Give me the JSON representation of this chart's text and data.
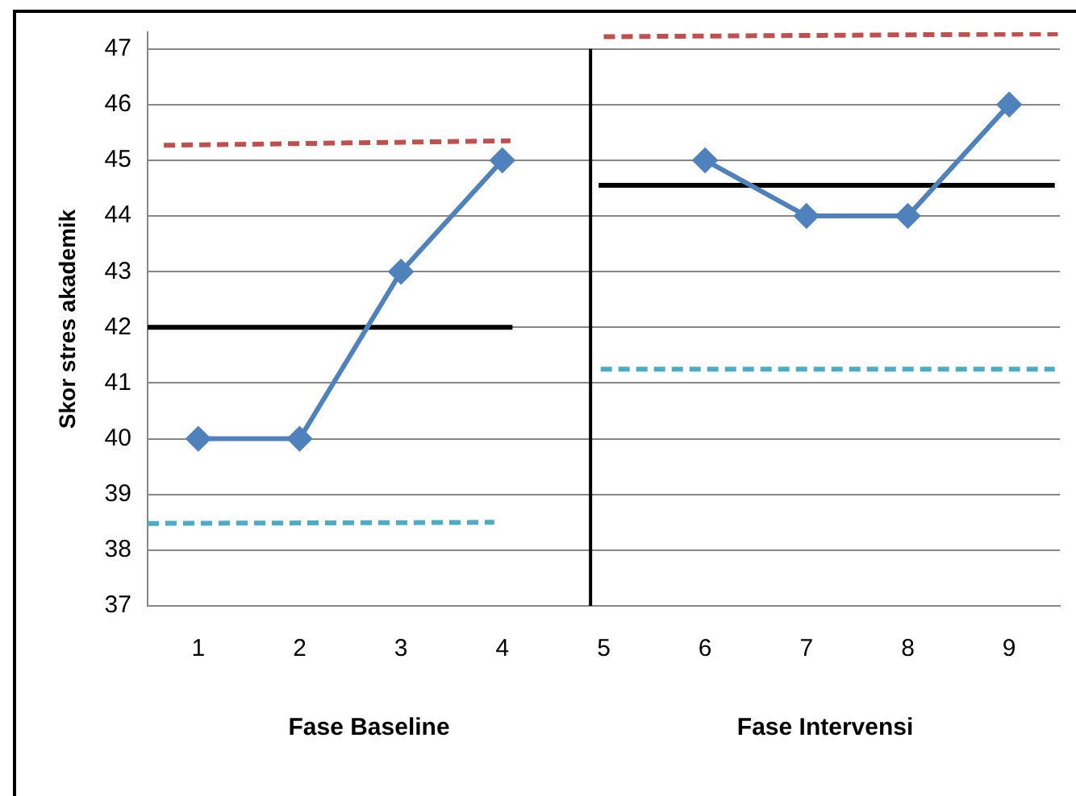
{
  "chart_data": {
    "type": "line",
    "ylabel": "Skor stres akademik",
    "x": [
      1,
      2,
      3,
      4,
      5,
      6,
      7,
      8,
      9
    ],
    "xlim": [
      0.5,
      9.5
    ],
    "xticks": [
      1,
      2,
      3,
      4,
      5,
      6,
      7,
      8,
      9
    ],
    "ylim": [
      37,
      47.3
    ],
    "yticks": [
      37,
      38,
      39,
      40,
      41,
      42,
      43,
      44,
      45,
      46,
      47
    ],
    "grid": "y",
    "legend": false,
    "series": [
      {
        "color": "#4f81bd",
        "values": [
          40,
          40,
          43,
          45,
          null,
          45,
          44,
          44,
          46
        ],
        "marker": "diamond",
        "line_style": "solid"
      },
      {
        "type": "line",
        "x": [
          0.5,
          4.1
        ],
        "values": [
          42,
          42
        ],
        "color": "#000000",
        "marker": "none",
        "line_style": "solid"
      },
      {
        "type": "line",
        "x": [
          0.66,
          4.08
        ],
        "values": [
          45.27,
          45.35
        ],
        "color": "#c0504d",
        "marker": "none",
        "line_style": "dashed"
      },
      {
        "type": "line",
        "x": [
          0.5,
          3.92
        ],
        "values": [
          38.48,
          38.5
        ],
        "color": "#4bacc6",
        "marker": "none",
        "line_style": "dashed"
      },
      {
        "type": "line",
        "x": [
          4.95,
          9.45
        ],
        "values": [
          44.55,
          44.55
        ],
        "color": "#000000",
        "marker": "none",
        "line_style": "solid"
      },
      {
        "type": "line",
        "x": [
          5.0,
          9.48
        ],
        "values": [
          47.22,
          47.27
        ],
        "color": "#c0504d",
        "marker": "none",
        "line_style": "dashed"
      },
      {
        "type": "line",
        "x": [
          4.97,
          9.45
        ],
        "values": [
          41.25,
          41.25
        ],
        "color": "#4bacc6",
        "marker": "none",
        "line_style": "dashed"
      }
    ],
    "ref_lines": [
      {
        "axis": "x",
        "value": 4.87,
        "color": "#000000",
        "line_style": "solid"
      }
    ],
    "annotations": [
      "Fase Baseline",
      "Fase Intervensi"
    ]
  }
}
